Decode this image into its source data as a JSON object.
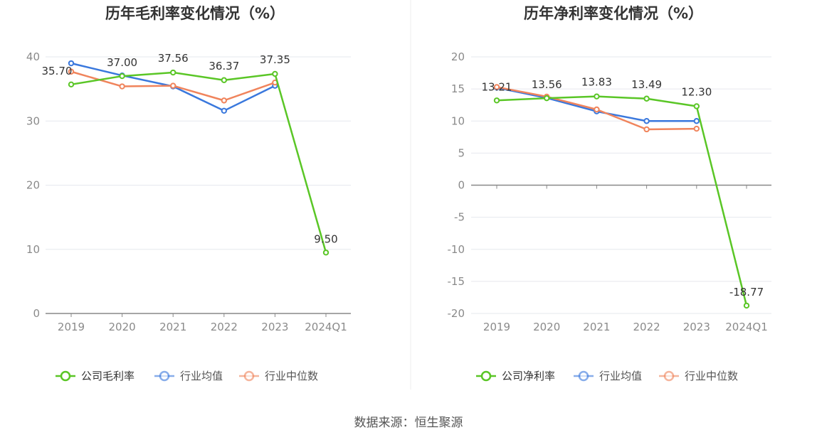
{
  "colors": {
    "company": "#5ac626",
    "industry_avg": "#3a78dd",
    "industry_median": "#f0845c",
    "grid": "#e6e8ee",
    "axis": "#888888",
    "divider": "#eeeeee"
  },
  "source": "数据来源：恒生聚源",
  "chart_data": [
    {
      "type": "line",
      "title": "历年毛利率变化情况（%）",
      "categories": [
        "2019",
        "2020",
        "2021",
        "2022",
        "2023",
        "2024Q1"
      ],
      "ylim": [
        0,
        40
      ],
      "yticks": [
        0,
        10,
        20,
        30,
        40
      ],
      "grid": true,
      "legend_position": "bottom",
      "series": [
        {
          "name": "公司毛利率",
          "key": "company",
          "values": [
            35.7,
            37.0,
            37.56,
            36.37,
            37.35,
            9.5
          ],
          "labels": [
            "35.70",
            "37.00",
            "37.56",
            "36.37",
            "37.35",
            "9.50"
          ]
        },
        {
          "name": "行业均值",
          "key": "industry_avg",
          "values": [
            39.0,
            37.1,
            35.4,
            31.6,
            35.5,
            null
          ]
        },
        {
          "name": "行业中位数",
          "key": "industry_median",
          "values": [
            37.7,
            35.4,
            35.5,
            33.2,
            36.0,
            null
          ]
        }
      ]
    },
    {
      "type": "line",
      "title": "历年净利率变化情况（%）",
      "categories": [
        "2019",
        "2020",
        "2021",
        "2022",
        "2023",
        "2024Q1"
      ],
      "ylim": [
        -20,
        20
      ],
      "yticks": [
        -20,
        -15,
        -10,
        -5,
        0,
        5,
        10,
        15,
        20
      ],
      "grid": true,
      "legend_position": "bottom",
      "series": [
        {
          "name": "公司净利率",
          "key": "company",
          "values": [
            13.21,
            13.56,
            13.83,
            13.49,
            12.3,
            -18.77
          ],
          "labels": [
            "13.21",
            "13.56",
            "13.83",
            "13.49",
            "12.30",
            "-18.77"
          ]
        },
        {
          "name": "行业均值",
          "key": "industry_avg",
          "values": [
            15.2,
            13.6,
            11.5,
            10.0,
            10.0,
            null
          ]
        },
        {
          "name": "行业中位数",
          "key": "industry_median",
          "values": [
            15.3,
            13.8,
            11.8,
            8.7,
            8.8,
            null
          ]
        }
      ]
    }
  ]
}
